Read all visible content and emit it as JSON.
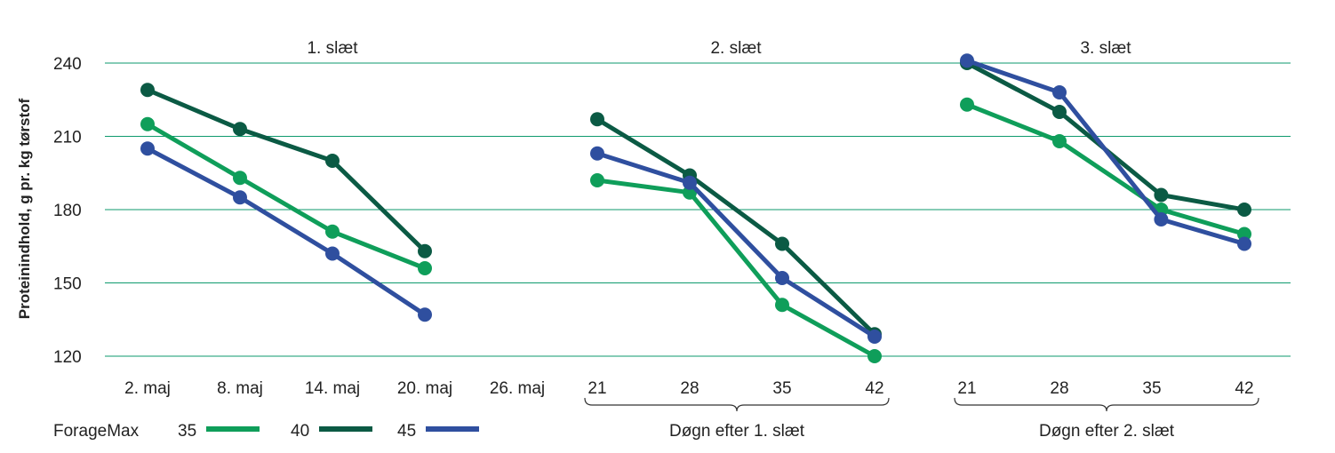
{
  "chart_data": {
    "type": "line",
    "ylabel": "Proteinindhold, g pr. kg tørstof",
    "ylim": [
      120,
      240
    ],
    "yticks": [
      120,
      150,
      180,
      210,
      240
    ],
    "grid": true,
    "colors": {
      "35": "#0f9e5a",
      "40": "#0b5a44",
      "45": "#2f4f9f"
    },
    "legend": {
      "title": "ForageMax",
      "placement": "bottom-left",
      "entries": [
        "35",
        "40",
        "45"
      ]
    },
    "panels": [
      {
        "title": "1. slæt",
        "categories": [
          "2. maj",
          "8. maj",
          "14. maj",
          "20. maj",
          "26. maj"
        ],
        "bracket_label": "",
        "series": [
          {
            "name": "35",
            "points": [
              [
                0,
                215
              ],
              [
                1,
                193
              ],
              [
                2,
                171
              ],
              [
                3,
                156
              ]
            ]
          },
          {
            "name": "40",
            "points": [
              [
                0,
                229
              ],
              [
                1,
                213
              ],
              [
                2,
                200
              ],
              [
                3,
                163
              ]
            ]
          },
          {
            "name": "45",
            "points": [
              [
                0,
                205
              ],
              [
                1,
                185
              ],
              [
                2,
                162
              ],
              [
                3,
                137
              ]
            ]
          }
        ]
      },
      {
        "title": "2. slæt",
        "categories": [
          "21",
          "28",
          "35",
          "42"
        ],
        "bracket_label": "Døgn efter 1. slæt",
        "series": [
          {
            "name": "35",
            "points": [
              [
                0,
                192
              ],
              [
                1,
                187
              ],
              [
                2,
                141
              ],
              [
                3,
                120
              ]
            ]
          },
          {
            "name": "40",
            "points": [
              [
                0,
                217
              ],
              [
                1,
                194
              ],
              [
                2,
                166
              ],
              [
                3,
                129
              ]
            ]
          },
          {
            "name": "45",
            "points": [
              [
                0,
                203
              ],
              [
                1,
                191
              ],
              [
                2,
                152
              ],
              [
                3,
                128
              ]
            ]
          }
        ]
      },
      {
        "title": "3. slæt",
        "categories": [
          "21",
          "28",
          "35",
          "42"
        ],
        "bracket_label": "Døgn efter 2. slæt",
        "series": [
          {
            "name": "35",
            "points": [
              [
                0,
                223
              ],
              [
                1,
                208
              ],
              [
                2.1,
                180
              ],
              [
                3,
                170
              ]
            ]
          },
          {
            "name": "40",
            "points": [
              [
                0,
                240
              ],
              [
                1,
                220
              ],
              [
                2.1,
                186
              ],
              [
                3,
                180
              ]
            ]
          },
          {
            "name": "45",
            "points": [
              [
                0,
                241
              ],
              [
                1,
                228
              ],
              [
                2.1,
                176
              ],
              [
                3,
                166
              ]
            ]
          }
        ]
      }
    ]
  }
}
